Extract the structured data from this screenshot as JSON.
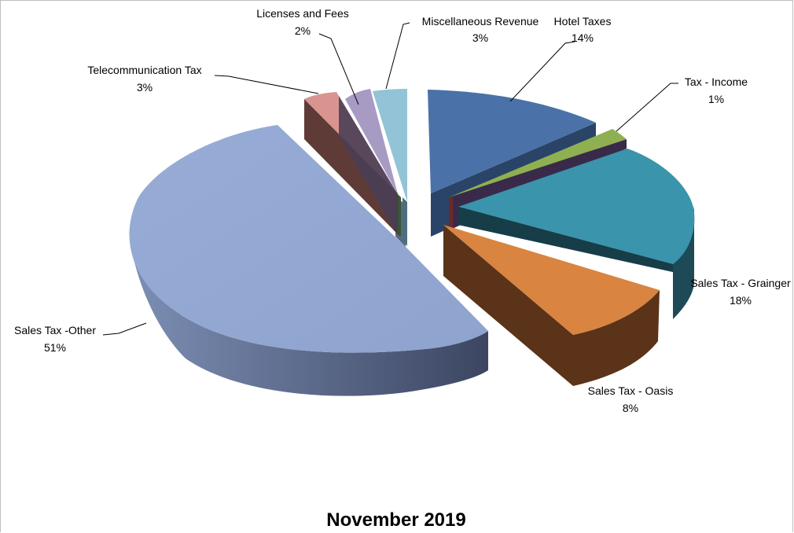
{
  "chart_data": {
    "type": "pie",
    "title": "November 2019",
    "slices": [
      {
        "label": "Hotel Taxes",
        "value": 14,
        "display": "14%",
        "color": "#4a72a8"
      },
      {
        "label": "Tax - Income",
        "value": 1,
        "display": "1%",
        "color": "#8fb050"
      },
      {
        "label": "Sales Tax - Grainger",
        "value": 18,
        "display": "18%",
        "color": "#3a94ab"
      },
      {
        "label": "Sales Tax - Oasis",
        "value": 8,
        "display": "8%",
        "color": "#d98440"
      },
      {
        "label": "Sales Tax -Other",
        "value": 51,
        "display": "51%",
        "color": "#93a9d2"
      },
      {
        "label": "Telecommunication Tax",
        "value": 3,
        "display": "3%",
        "color": "#d99490"
      },
      {
        "label": "Licenses and Fees",
        "value": 2,
        "display": "2%",
        "color": "#a79bc4"
      },
      {
        "label": "Miscellaneous Revenue",
        "value": 3,
        "display": "3%",
        "color": "#93c3d6"
      }
    ]
  }
}
